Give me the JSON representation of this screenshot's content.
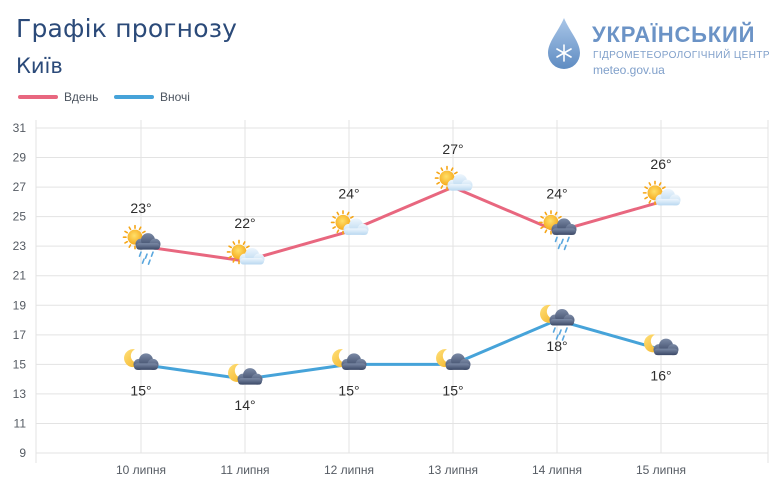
{
  "header": {
    "title": "Графік прогнозу",
    "city": "Київ"
  },
  "logo": {
    "name": "УКРАЇНСЬКИЙ",
    "subtitle": "ГІДРОМЕТЕОРОЛОГІЧНИЙ ЦЕНТР",
    "url": "meteo.gov.ua"
  },
  "colors": {
    "day": "#e8677f",
    "night": "#46a3d9",
    "title": "#2b4a79",
    "grid": "#e3e3e3"
  },
  "chart_data": {
    "type": "line",
    "title": "Графік прогнозу",
    "categories": [
      "10 липня",
      "11 липня",
      "12 липня",
      "13 липня",
      "14 липня",
      "15 липня"
    ],
    "ylim": [
      9,
      31
    ],
    "yticks": [
      9,
      11,
      13,
      15,
      17,
      19,
      21,
      23,
      25,
      27,
      29,
      31
    ],
    "grid": true,
    "legend_position": "top-left",
    "series": [
      {
        "name": "Вдень",
        "values": [
          23,
          22,
          24,
          27,
          24,
          26
        ],
        "labels": [
          "23°",
          "22°",
          "24°",
          "27°",
          "24°",
          "26°"
        ],
        "icons": [
          "sun-cloud-rain-icon",
          "sun-cloud-icon",
          "sun-cloud-icon",
          "sun-cloud-icon",
          "sun-cloud-rain-icon",
          "sun-cloud-icon"
        ]
      },
      {
        "name": "Вночі",
        "values": [
          15,
          14,
          15,
          15,
          18,
          16
        ],
        "labels": [
          "15°",
          "14°",
          "15°",
          "15°",
          "18°",
          "16°"
        ],
        "icons": [
          "moon-cloud-icon",
          "moon-cloud-icon",
          "moon-cloud-icon",
          "moon-cloud-icon",
          "moon-cloud-rain-icon",
          "moon-cloud-icon"
        ]
      }
    ]
  }
}
